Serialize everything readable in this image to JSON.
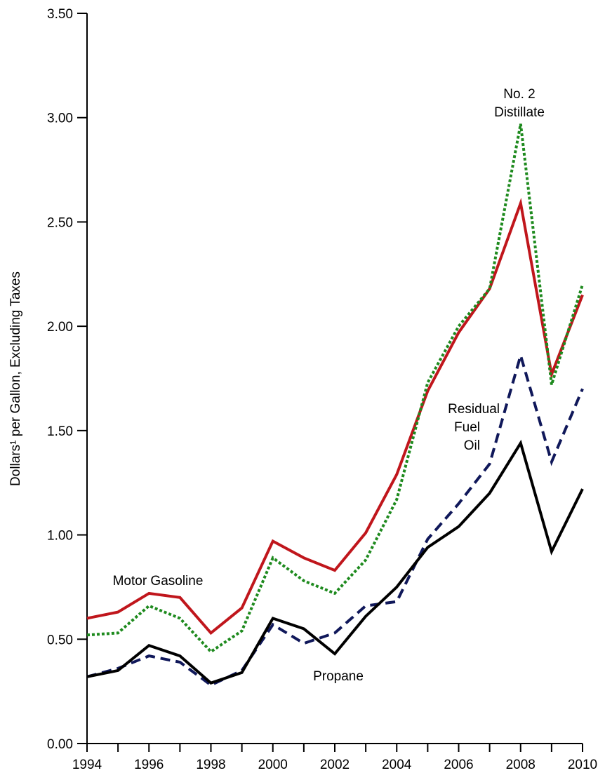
{
  "chart_data": {
    "type": "line",
    "ylabel": "Dollars¹ per Gallon, Excluding Taxes",
    "ylim": [
      0,
      3.5
    ],
    "xlim": [
      1994,
      2010
    ],
    "yticks": [
      "0.00",
      "0.50",
      "1.00",
      "1.50",
      "2.00",
      "2.50",
      "3.00",
      "3.50"
    ],
    "xticks": [
      "1994",
      "1996",
      "1998",
      "2000",
      "2002",
      "2004",
      "2006",
      "2008",
      "2010"
    ],
    "grid": false,
    "x": [
      1994,
      1995,
      1996,
      1997,
      1998,
      1999,
      2000,
      2001,
      2002,
      2003,
      2004,
      2005,
      2006,
      2007,
      2008,
      2009,
      2010
    ],
    "series": [
      {
        "name": "Motor Gasoline",
        "color": "#c0161c",
        "style": "solid",
        "values": [
          0.6,
          0.63,
          0.72,
          0.7,
          0.53,
          0.65,
          0.97,
          0.89,
          0.83,
          1.01,
          1.29,
          1.69,
          1.97,
          2.18,
          2.59,
          1.77,
          2.15
        ]
      },
      {
        "name": "No. 2 Distillate",
        "color": "#1e8a1e",
        "style": "dotted",
        "values": [
          0.52,
          0.53,
          0.66,
          0.6,
          0.44,
          0.54,
          0.89,
          0.78,
          0.72,
          0.88,
          1.17,
          1.73,
          2.0,
          2.18,
          2.97,
          1.72,
          2.2
        ]
      },
      {
        "name": "Residual Fuel Oil",
        "color": "#10185a",
        "style": "dashed",
        "values": [
          0.32,
          0.36,
          0.42,
          0.39,
          0.28,
          0.35,
          0.57,
          0.48,
          0.53,
          0.66,
          0.68,
          0.98,
          1.15,
          1.34,
          1.86,
          1.35,
          1.7
        ]
      },
      {
        "name": "Propane",
        "color": "#000000",
        "style": "solid",
        "values": [
          0.32,
          0.35,
          0.47,
          0.42,
          0.29,
          0.34,
          0.6,
          0.55,
          0.43,
          0.61,
          0.75,
          0.94,
          1.04,
          1.2,
          1.44,
          0.92,
          1.22
        ]
      }
    ],
    "annotations": {
      "motor_gasoline": "Motor Gasoline",
      "distillate_line1": "No. 2",
      "distillate_line2": "Distillate",
      "residual_line1": "Residual",
      "residual_line2": "Fuel",
      "residual_line3": "Oil",
      "propane": "Propane"
    }
  }
}
